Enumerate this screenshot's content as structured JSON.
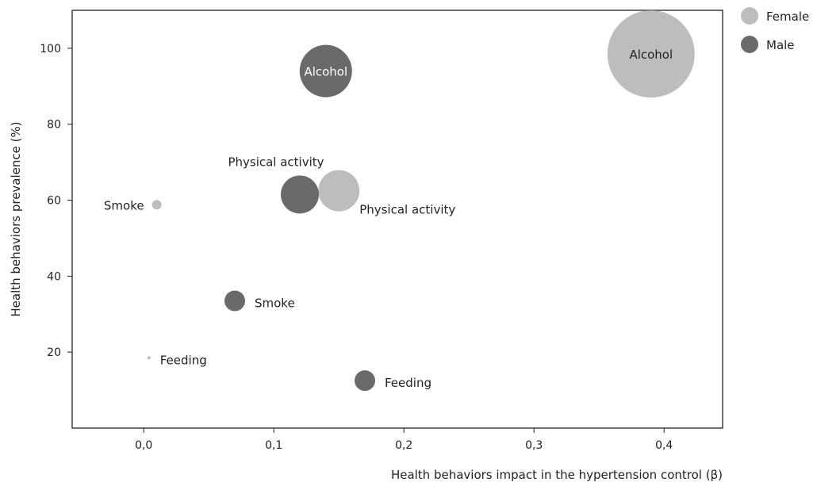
{
  "chart_data": {
    "type": "scatter",
    "xlabel": "Health behaviors impact in the hypertension control (β)",
    "ylabel": "Health behaviors prevalence (%)",
    "xlim": [
      -0.055,
      0.445
    ],
    "ylim": [
      0,
      110
    ],
    "x_ticks": [
      0.0,
      0.1,
      0.2,
      0.3,
      0.4
    ],
    "x_tick_labels": [
      "0,0",
      "0,1",
      "0,2",
      "0,3",
      "0,4"
    ],
    "y_ticks": [
      20,
      40,
      60,
      80,
      100
    ],
    "y_tick_labels": [
      "20",
      "40",
      "60",
      "80",
      "100"
    ],
    "grid": false,
    "legend_position": "top-right, outside plot",
    "series": [
      {
        "name": "Female",
        "color": "#bdbdbf",
        "points": [
          {
            "label": "Alcohol",
            "x": 0.39,
            "y": 98.5,
            "size": 55,
            "label_pos": "inside"
          },
          {
            "label": "Physical activity",
            "x": 0.15,
            "y": 62.5,
            "size": 26,
            "label_pos": "below-right"
          },
          {
            "label": "Smoke",
            "x": 0.01,
            "y": 58.8,
            "size": 6,
            "label_pos": "left"
          },
          {
            "label": "Feeding",
            "x": 0.004,
            "y": 18.5,
            "size": 2,
            "label_pos": "right"
          }
        ]
      },
      {
        "name": "Male",
        "color": "#6a6a6d",
        "points": [
          {
            "label": "Alcohol",
            "x": 0.14,
            "y": 94,
            "size": 33,
            "label_pos": "inside"
          },
          {
            "label": "Physical activity",
            "x": 0.12,
            "y": 61.5,
            "size": 24,
            "label_pos": "above-left"
          },
          {
            "label": "Smoke",
            "x": 0.07,
            "y": 33.5,
            "size": 13,
            "label_pos": "right"
          },
          {
            "label": "Feeding",
            "x": 0.17,
            "y": 12.5,
            "size": 13,
            "label_pos": "right"
          }
        ]
      }
    ]
  }
}
